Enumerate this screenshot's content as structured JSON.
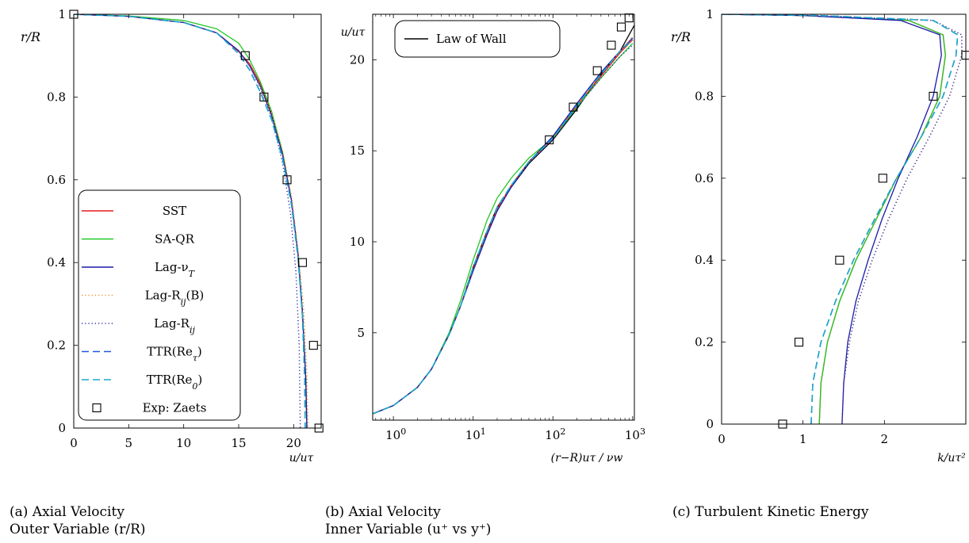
{
  "colors": {
    "SST": "#e31a1c",
    "SA-QR": "#22c822",
    "Lag-nuT": "#1a1aa8",
    "Lag-Rij(B)": "#f28e2b",
    "Lag-Rij": "#3333aa",
    "TTR(Re_tau)": "#2255dd",
    "TTR(Re_0)": "#1ba8c8",
    "Exp": "#000000",
    "LawOfWall": "#000000"
  },
  "captions": {
    "a": [
      "(a) Axial Velocity",
      "Outer Variable (r/R)"
    ],
    "b": [
      "(b) Axial Velocity",
      "Inner Variable (u⁺ vs y⁺)"
    ],
    "c": [
      "(c) Turbulent Kinetic Energy"
    ]
  },
  "chart_data": [
    {
      "id": "a",
      "type": "line",
      "xlabel": "u/uτ",
      "ylabel": "r/R",
      "xlim": [
        0,
        22.5
      ],
      "ylim": [
        0,
        1
      ],
      "xticks": [
        0,
        5,
        10,
        15,
        20
      ],
      "xtick_labels": [
        "0",
        "5",
        "10",
        "15",
        "20"
      ],
      "yticks": [
        0,
        0.2,
        0.4,
        0.6,
        0.8,
        1
      ],
      "ytick_labels": [
        "0",
        "0.2",
        "0.4",
        "0.6",
        "0.8",
        "1"
      ],
      "grid": false,
      "legend_position": "bottom-left",
      "legend": [
        {
          "label": "SST",
          "style": "solid",
          "color_key": "SST"
        },
        {
          "label": "SA-QR",
          "style": "solid",
          "color_key": "SA-QR"
        },
        {
          "label": "Lag-ν_T",
          "style": "solid",
          "color_key": "Lag-nuT"
        },
        {
          "label": "Lag-R_ij(B)",
          "style": "dotted",
          "color_key": "Lag-Rij(B)"
        },
        {
          "label": "Lag-R_ij",
          "style": "dotted",
          "color_key": "Lag-Rij"
        },
        {
          "label": "TTR(Re_τ)",
          "style": "dashed",
          "color_key": "TTR(Re_tau)"
        },
        {
          "label": "TTR(Re_0)",
          "style": "dashed",
          "color_key": "TTR(Re_0)"
        },
        {
          "label": "Exp: Zaets",
          "style": "square",
          "color_key": "Exp"
        }
      ],
      "series": [
        {
          "key": "SST",
          "style": "solid",
          "x": [
            0,
            5,
            10,
            13,
            15,
            16,
            17,
            18,
            19,
            19.8,
            20.4,
            20.8,
            21.1,
            21.2
          ],
          "y": [
            1,
            0.995,
            0.98,
            0.955,
            0.91,
            0.88,
            0.83,
            0.76,
            0.66,
            0.55,
            0.42,
            0.28,
            0.12,
            0
          ]
        },
        {
          "key": "SA-QR",
          "style": "solid",
          "x": [
            0,
            5,
            10,
            13,
            15,
            16,
            17,
            18,
            19,
            19.8,
            20.4,
            20.8,
            21.1,
            21.2
          ],
          "y": [
            1,
            0.996,
            0.985,
            0.965,
            0.93,
            0.89,
            0.835,
            0.765,
            0.665,
            0.55,
            0.42,
            0.28,
            0.12,
            0
          ]
        },
        {
          "key": "Lag-nuT",
          "style": "solid",
          "x": [
            0,
            5,
            10,
            13,
            15,
            16,
            17,
            18,
            19,
            19.8,
            20.4,
            20.8,
            21.1,
            21.2
          ],
          "y": [
            1,
            0.995,
            0.98,
            0.955,
            0.912,
            0.875,
            0.825,
            0.755,
            0.66,
            0.55,
            0.42,
            0.28,
            0.12,
            0
          ]
        },
        {
          "key": "Lag-Rij(B)",
          "style": "dotted",
          "x": [
            0,
            5,
            10,
            13,
            15,
            16,
            17,
            18,
            19,
            19.8,
            20.4,
            20.9,
            21.2,
            21.3
          ],
          "y": [
            1,
            0.995,
            0.98,
            0.955,
            0.91,
            0.875,
            0.825,
            0.76,
            0.67,
            0.56,
            0.43,
            0.29,
            0.13,
            0
          ]
        },
        {
          "key": "Lag-Rij",
          "style": "dotted",
          "x": [
            0,
            5,
            10,
            13,
            15,
            16,
            17,
            18,
            19,
            19.7,
            20.2,
            20.5,
            20.6
          ],
          "y": [
            1,
            0.995,
            0.98,
            0.955,
            0.91,
            0.875,
            0.82,
            0.75,
            0.64,
            0.52,
            0.38,
            0.2,
            0
          ]
        },
        {
          "key": "TTR(Re_tau)",
          "style": "dashed",
          "x": [
            0,
            5,
            10,
            13,
            15,
            16,
            17,
            18,
            19,
            19.8,
            20.4,
            20.8,
            21.0,
            21.05
          ],
          "y": [
            1,
            0.995,
            0.98,
            0.955,
            0.905,
            0.865,
            0.81,
            0.745,
            0.65,
            0.54,
            0.41,
            0.27,
            0.12,
            0
          ]
        },
        {
          "key": "TTR(Re_0)",
          "style": "dashed",
          "x": [
            0,
            5,
            10,
            13,
            15,
            16,
            17,
            18,
            19,
            19.8,
            20.4,
            20.8,
            21.0,
            21.05
          ],
          "y": [
            1,
            0.995,
            0.98,
            0.955,
            0.905,
            0.865,
            0.81,
            0.745,
            0.65,
            0.54,
            0.41,
            0.27,
            0.12,
            0
          ]
        }
      ],
      "markers": {
        "key": "Exp",
        "x": [
          0,
          15.6,
          17.3,
          19.4,
          20.8,
          21.8,
          22.3
        ],
        "y": [
          1,
          0.9,
          0.8,
          0.6,
          0.4,
          0.2,
          0
        ]
      }
    },
    {
      "id": "b",
      "type": "line",
      "xlabel": "(r−R)uτ / νw",
      "ylabel": "u/uτ",
      "xscale": "log",
      "xlim": [
        0.55,
        1050
      ],
      "ylim": [
        0.2,
        22.5
      ],
      "xticks": [
        1,
        10,
        100,
        1000
      ],
      "xtick_labels": [
        "10^0",
        "10^1",
        "10^2",
        "10^3"
      ],
      "yticks": [
        5,
        10,
        15,
        20
      ],
      "ytick_labels": [
        "5",
        "10",
        "15",
        "20"
      ],
      "grid": false,
      "legend_position": "top-left",
      "legend": [
        {
          "label": "Law of Wall",
          "style": "solid",
          "color_key": "LawOfWall"
        }
      ],
      "series": [
        {
          "key": "LawOfWall",
          "style": "solid",
          "x": [
            0.55,
            1,
            2,
            3,
            5,
            7,
            10,
            15,
            20,
            30,
            50,
            100,
            200,
            400,
            700,
            1050
          ],
          "y": [
            0.55,
            1,
            2,
            3,
            4.9,
            6.5,
            8.6,
            10.6,
            11.9,
            13.0,
            14.3,
            15.6,
            17.3,
            19.2,
            20.5,
            21.9
          ]
        },
        {
          "key": "SST",
          "style": "solid",
          "x": [
            0.55,
            1,
            2,
            3,
            5,
            7,
            10,
            15,
            20,
            30,
            50,
            100,
            200,
            400,
            700,
            1000
          ],
          "y": [
            0.55,
            1,
            2,
            3,
            4.9,
            6.5,
            8.5,
            10.5,
            11.8,
            13.1,
            14.4,
            15.7,
            17.5,
            19.1,
            20.4,
            21.1
          ]
        },
        {
          "key": "SA-QR",
          "style": "solid",
          "x": [
            0.55,
            1,
            2,
            3,
            5,
            7,
            10,
            15,
            20,
            30,
            50,
            100,
            200,
            400,
            700,
            1000
          ],
          "y": [
            0.55,
            1,
            2,
            3,
            5.0,
            6.8,
            9.0,
            11.2,
            12.4,
            13.5,
            14.6,
            15.7,
            17.4,
            19.0,
            20.2,
            20.9
          ]
        },
        {
          "key": "Lag-nuT",
          "style": "solid",
          "x": [
            0.55,
            1,
            2,
            3,
            5,
            7,
            10,
            15,
            20,
            30,
            50,
            100,
            200,
            400,
            700,
            1000
          ],
          "y": [
            0.55,
            1,
            2,
            3,
            4.9,
            6.5,
            8.4,
            10.4,
            11.7,
            13.0,
            14.4,
            15.8,
            17.6,
            19.3,
            20.5,
            21.2
          ]
        },
        {
          "key": "Lag-Rij(B)",
          "style": "dotted",
          "x": [
            0.55,
            1,
            2,
            3,
            5,
            7,
            10,
            15,
            20,
            30,
            50,
            100,
            200,
            400,
            700,
            1000
          ],
          "y": [
            0.55,
            1,
            2,
            3,
            4.9,
            6.5,
            8.5,
            10.5,
            11.8,
            13.1,
            14.4,
            15.7,
            17.5,
            19.2,
            20.5,
            21.3
          ]
        },
        {
          "key": "Lag-Rij",
          "style": "dotted",
          "x": [
            0.55,
            1,
            2,
            3,
            5,
            7,
            10,
            15,
            20,
            30,
            50,
            100,
            200,
            400,
            700,
            1000
          ],
          "y": [
            0.55,
            1,
            2,
            3,
            4.9,
            6.5,
            8.4,
            10.4,
            11.7,
            13.0,
            14.3,
            15.6,
            17.4,
            19.0,
            20.2,
            20.8
          ]
        },
        {
          "key": "TTR(Re_tau)",
          "style": "dashed",
          "x": [
            0.55,
            1,
            2,
            3,
            5,
            7,
            10,
            15,
            20,
            30,
            50,
            100,
            200,
            400,
            700,
            1000
          ],
          "y": [
            0.55,
            1,
            2,
            3,
            4.9,
            6.5,
            8.6,
            10.6,
            11.9,
            13.1,
            14.4,
            15.7,
            17.5,
            19.2,
            20.5,
            21.1
          ]
        },
        {
          "key": "TTR(Re_0)",
          "style": "dashed",
          "x": [
            0.55,
            1,
            2,
            3,
            5,
            7,
            10,
            15,
            20,
            30,
            50,
            100,
            200,
            400,
            700,
            1000
          ],
          "y": [
            0.55,
            1,
            2,
            3,
            4.9,
            6.5,
            8.6,
            10.6,
            11.9,
            13.1,
            14.4,
            15.7,
            17.5,
            19.2,
            20.5,
            21.1
          ]
        }
      ],
      "markers": {
        "key": "Exp",
        "x": [
          90,
          180,
          360,
          540,
          720,
          900
        ],
        "y": [
          15.6,
          17.4,
          19.4,
          20.8,
          21.8,
          22.3
        ]
      }
    },
    {
      "id": "c",
      "type": "line",
      "xlabel": "k/uτ²",
      "ylabel": "r/R",
      "xlim": [
        0,
        3
      ],
      "ylim": [
        0,
        1
      ],
      "xticks": [
        0,
        1,
        2
      ],
      "xtick_labels": [
        "0",
        "1",
        "2"
      ],
      "yticks": [
        0,
        0.2,
        0.4,
        0.6,
        0.8,
        1
      ],
      "ytick_labels": [
        "0",
        "0.2",
        "0.4",
        "0.6",
        "0.8",
        "1"
      ],
      "grid": false,
      "series": [
        {
          "key": "SST",
          "style": "solid",
          "x": [
            1.2,
            1.22,
            1.3,
            1.45,
            1.65,
            1.9,
            2.15,
            2.45,
            2.68,
            2.75,
            2.72,
            2.3,
            1.0,
            0
          ],
          "y": [
            0,
            0.1,
            0.2,
            0.3,
            0.4,
            0.5,
            0.6,
            0.7,
            0.8,
            0.9,
            0.95,
            0.985,
            0.997,
            1
          ]
        },
        {
          "key": "SA-QR",
          "style": "solid",
          "x": [
            1.2,
            1.22,
            1.3,
            1.45,
            1.65,
            1.9,
            2.15,
            2.45,
            2.68,
            2.75,
            2.72,
            2.3,
            1.0,
            0
          ],
          "y": [
            0,
            0.1,
            0.2,
            0.3,
            0.4,
            0.5,
            0.6,
            0.7,
            0.8,
            0.9,
            0.95,
            0.985,
            0.997,
            1
          ]
        },
        {
          "key": "Lag-nuT",
          "style": "solid",
          "x": [
            1.48,
            1.5,
            1.55,
            1.65,
            1.8,
            1.97,
            2.17,
            2.4,
            2.6,
            2.7,
            2.68,
            2.2,
            1.0,
            0
          ],
          "y": [
            0,
            0.1,
            0.2,
            0.3,
            0.4,
            0.5,
            0.6,
            0.7,
            0.8,
            0.9,
            0.95,
            0.985,
            0.997,
            1
          ]
        },
        {
          "key": "Lag-Rij(B)",
          "style": "dotted",
          "x": [
            1.48,
            1.5,
            1.57,
            1.68,
            1.85,
            2.05,
            2.28,
            2.55,
            2.8,
            2.95,
            2.95,
            2.6,
            1.2,
            0
          ],
          "y": [
            0,
            0.1,
            0.2,
            0.3,
            0.4,
            0.5,
            0.6,
            0.7,
            0.8,
            0.9,
            0.95,
            0.985,
            0.997,
            1
          ]
        },
        {
          "key": "Lag-Rij",
          "style": "dotted",
          "x": [
            1.48,
            1.5,
            1.57,
            1.68,
            1.85,
            2.05,
            2.28,
            2.55,
            2.8,
            2.95,
            2.95,
            2.6,
            1.2,
            0
          ],
          "y": [
            0,
            0.1,
            0.2,
            0.3,
            0.4,
            0.5,
            0.6,
            0.7,
            0.8,
            0.9,
            0.95,
            0.985,
            0.997,
            1
          ]
        },
        {
          "key": "TTR(Re_tau)",
          "style": "dashed",
          "x": [
            1.1,
            1.12,
            1.22,
            1.4,
            1.62,
            1.88,
            2.15,
            2.45,
            2.72,
            2.88,
            2.9,
            2.6,
            1.2,
            0
          ],
          "y": [
            0,
            0.1,
            0.2,
            0.3,
            0.4,
            0.5,
            0.6,
            0.7,
            0.8,
            0.9,
            0.95,
            0.985,
            0.997,
            1
          ]
        },
        {
          "key": "TTR(Re_0)",
          "style": "dashed",
          "x": [
            1.1,
            1.12,
            1.22,
            1.4,
            1.62,
            1.88,
            2.15,
            2.45,
            2.72,
            2.88,
            2.9,
            2.6,
            1.2,
            0
          ],
          "y": [
            0,
            0.1,
            0.2,
            0.3,
            0.4,
            0.5,
            0.6,
            0.7,
            0.8,
            0.9,
            0.95,
            0.985,
            0.997,
            1
          ]
        }
      ],
      "markers": {
        "key": "Exp",
        "x": [
          0.75,
          0.95,
          1.45,
          1.98,
          2.6,
          3.0
        ],
        "y": [
          0,
          0.2,
          0.4,
          0.6,
          0.8,
          0.9
        ]
      }
    }
  ]
}
